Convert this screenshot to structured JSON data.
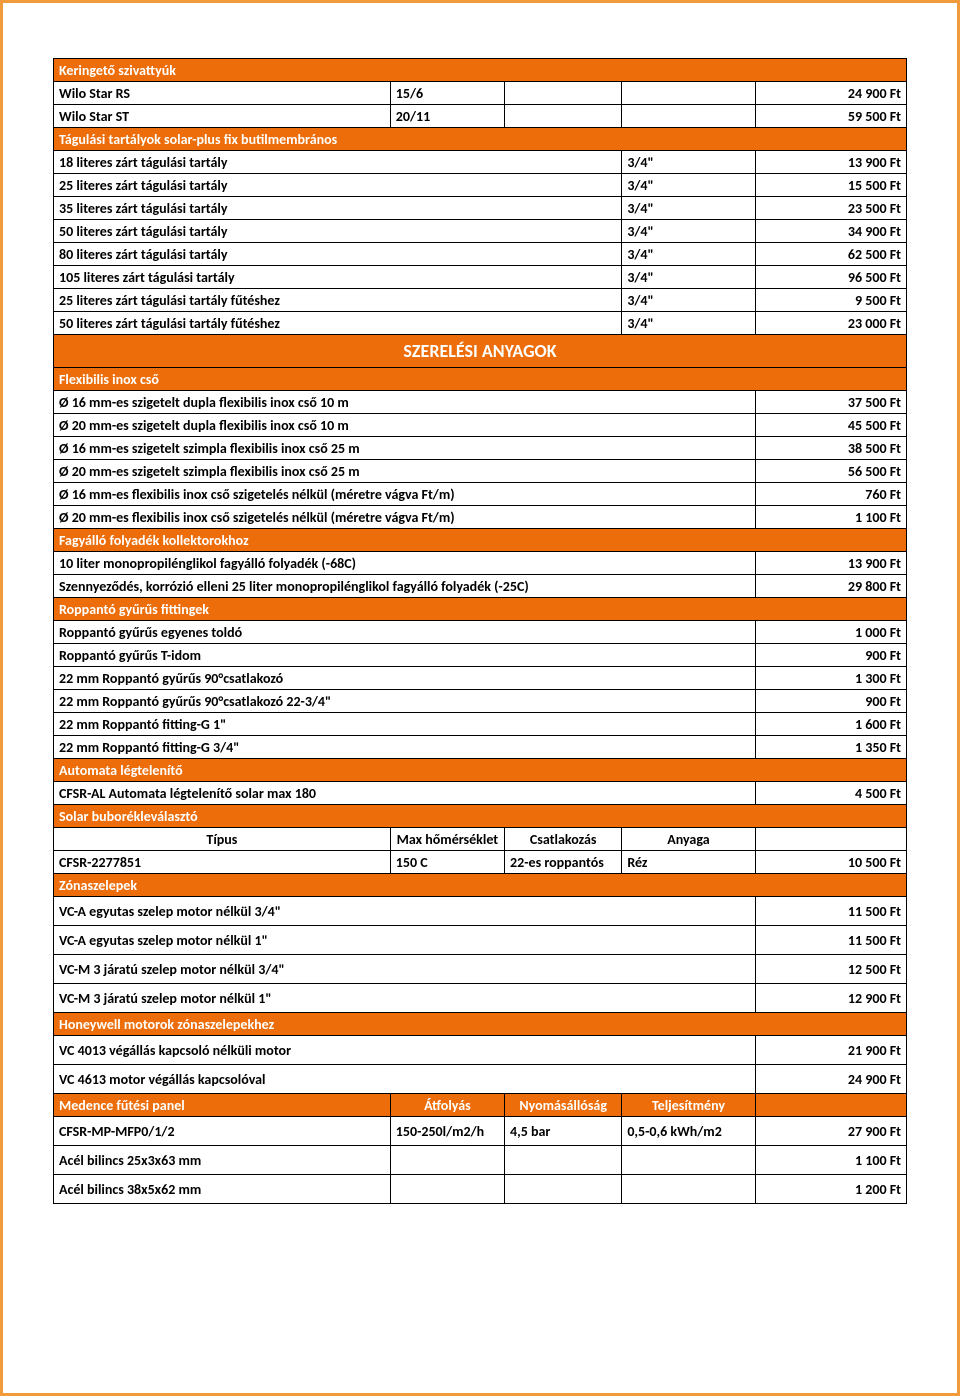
{
  "colors": {
    "header_bg": "#ec6d09",
    "header_fg": "#ffffff",
    "border": "#000000",
    "page_border": "#f29b3a",
    "page_bg": "#ffffff",
    "text": "#000000"
  },
  "sections": {
    "pumps": {
      "title": "Keringető szivattyúk",
      "rows": [
        {
          "name": "Wilo Star RS",
          "spec": "15/6",
          "price": "24 900 Ft"
        },
        {
          "name": "Wilo Star ST",
          "spec": "20/11",
          "price": "59 500 Ft"
        }
      ]
    },
    "tanks": {
      "title": "Tágulási tartályok solar-plus fix butilmembrános",
      "rows": [
        {
          "name": "18 literes zárt tágulási tartály",
          "conn": "3/4\"",
          "price": "13 900 Ft"
        },
        {
          "name": "25 literes zárt tágulási tartály",
          "conn": "3/4\"",
          "price": "15 500 Ft"
        },
        {
          "name": "35 literes zárt tágulási tartály",
          "conn": "3/4\"",
          "price": "23 500 Ft"
        },
        {
          "name": "50 literes zárt tágulási tartály",
          "conn": "3/4\"",
          "price": "34 900 Ft"
        },
        {
          "name": "80 literes zárt tágulási tartály",
          "conn": "3/4\"",
          "price": "62 500 Ft"
        },
        {
          "name": "105 literes zárt tágulási tartály",
          "conn": "3/4\"",
          "price": "96 500 Ft"
        },
        {
          "name": "25 literes zárt tágulási tartály fűtéshez",
          "conn": "3/4\"",
          "price": "9 500 Ft"
        },
        {
          "name": "50 literes zárt tágulási tartály fűtéshez",
          "conn": "3/4\"",
          "price": "23 000 Ft"
        }
      ]
    },
    "assembly_title": "SZERELÉSI ANYAGOK",
    "flex_pipe": {
      "title": "Flexibilis inox cső",
      "rows": [
        {
          "name": "Ø 16 mm-es szigetelt dupla flexibilis inox cső 10 m",
          "price": "37 500 Ft"
        },
        {
          "name": "Ø 20 mm-es szigetelt dupla flexibilis inox cső 10 m",
          "price": "45 500 Ft"
        },
        {
          "name": "Ø 16 mm-es szigetelt szimpla flexibilis inox cső 25 m",
          "price": "38 500 Ft"
        },
        {
          "name": "Ø 20 mm-es szigetelt szimpla flexibilis inox cső 25 m",
          "price": "56 500 Ft"
        },
        {
          "name": "Ø  16 mm-es flexibilis inox cső szigetelés nélkül (méretre vágva Ft/m)",
          "price": "760 Ft"
        },
        {
          "name": "Ø  20 mm-es flexibilis inox cső szigetelés nélkül (méretre vágva Ft/m)",
          "price": "1 100 Ft"
        }
      ]
    },
    "antifreeze": {
      "title": "Fagyálló folyadék kollektorokhoz",
      "rows": [
        {
          "name": "10 liter monopropilénglikol fagyálló folyadék (-68C)",
          "price": "13 900 Ft"
        },
        {
          "name": "Szennyeződés, korrózió elleni 25 liter monopropilénglikol fagyálló folyadék (-25C)",
          "price": "29 800 Ft"
        }
      ]
    },
    "fittings": {
      "title": "Roppantó gyűrűs fittingek",
      "rows": [
        {
          "name": "Roppantó gyűrűs egyenes toldó",
          "price": "1 000 Ft"
        },
        {
          "name": "Roppantó gyűrűs T-idom",
          "price": "900 Ft"
        },
        {
          "name": "22 mm Roppantó gyűrűs 90°csatlakozó",
          "price": "1 300 Ft"
        },
        {
          "name": "22 mm Roppantó gyűrűs 90°csatlakozó 22-3/4\"",
          "price": "900 Ft"
        },
        {
          "name": "22 mm Roppantó fitting-G 1\"",
          "price": "1 600 Ft"
        },
        {
          "name": "22 mm Roppantó fitting-G 3/4\"",
          "price": "1 350 Ft"
        }
      ]
    },
    "air_vent": {
      "title": "Automata légtelenítő",
      "rows": [
        {
          "name": "CFSR-AL Automata légtelenítő solar max 180",
          "price": "4 500 Ft"
        }
      ]
    },
    "bubble_sep": {
      "title": "Solar buborékleválasztó",
      "columns": [
        "Típus",
        "Max hőmérséklet",
        "Csatlakozás",
        "Anyaga"
      ],
      "rows": [
        {
          "name": "CFSR-2277851",
          "temp": "150 C",
          "conn": "22-es roppantós",
          "mat": "Réz",
          "price": "10 500 Ft"
        }
      ]
    },
    "zone_valves": {
      "title": "Zónaszelepek",
      "rows": [
        {
          "name": "VC-A egyutas szelep motor nélkül 3/4\"",
          "price": "11 500 Ft"
        },
        {
          "name": "VC-A egyutas szelep motor nélkül 1\"",
          "price": "11 500 Ft"
        },
        {
          "name": "VC-M 3 járatú szelep motor nélkül 3/4\"",
          "price": "12 500 Ft"
        },
        {
          "name": "VC-M 3 járatú szelep motor nélkül 1\"",
          "price": "12 900 Ft"
        }
      ]
    },
    "honeywell": {
      "title": "Honeywell motorok zónaszelepekhez",
      "rows": [
        {
          "name": "VC 4013 végállás kapcsoló nélküli motor",
          "price": "21 900 Ft"
        },
        {
          "name": "VC 4613 motor végállás kapcsolóval",
          "price": "24 900 Ft"
        }
      ]
    },
    "pool_panel": {
      "title": "Medence fűtési panel",
      "columns": [
        "Átfolyás",
        "Nyomásállóság",
        "Teljesítmény"
      ],
      "rows": [
        {
          "name": "CFSR-MP-MFP0/1/2",
          "flow": "150-250l/m2/h",
          "press": "4,5 bar",
          "perf": "0,5-0,6 kWh/m2",
          "price": "27 900 Ft"
        },
        {
          "name": "Acél bilincs 25x3x63 mm",
          "flow": "",
          "press": "",
          "perf": "",
          "price": "1 100 Ft"
        },
        {
          "name": "Acél bilincs 38x5x62 mm",
          "flow": "",
          "press": "",
          "perf": "",
          "price": "1 200 Ft"
        }
      ]
    }
  }
}
